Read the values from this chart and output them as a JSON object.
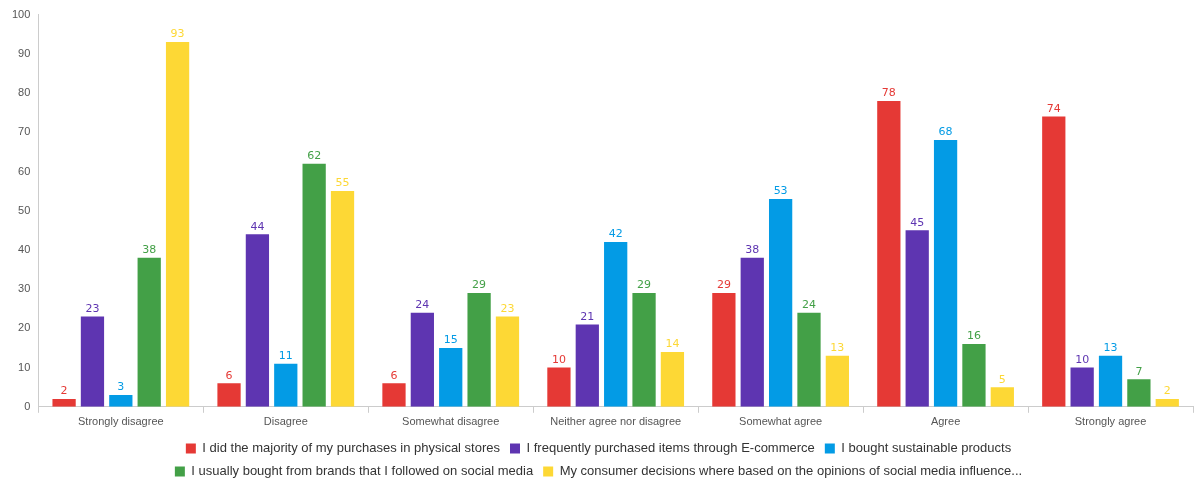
{
  "chart_data": {
    "type": "bar",
    "categories": [
      "Strongly disagree",
      "Disagree",
      "Somewhat disagree",
      "Neither agree nor disagree",
      "Somewhat agree",
      "Agree",
      "Strongly agree"
    ],
    "series": [
      {
        "name": "I did the majority of my purchases in physical stores",
        "color": "#e53935",
        "values": [
          2,
          6,
          6,
          10,
          29,
          78,
          74
        ]
      },
      {
        "name": "I frequently purchased items through E-commerce",
        "color": "#5e35b1",
        "values": [
          23,
          44,
          24,
          21,
          38,
          45,
          10
        ]
      },
      {
        "name": "I bought sustainable products",
        "color": "#039be5",
        "values": [
          3,
          11,
          15,
          42,
          53,
          68,
          13
        ]
      },
      {
        "name": "I usually bought from brands that I followed on social media",
        "color": "#43a047",
        "values": [
          38,
          62,
          29,
          29,
          24,
          16,
          7
        ]
      },
      {
        "name": "My consumer decisions where based on the opinions of social media influence...",
        "color": "#fdd835",
        "values": [
          93,
          55,
          23,
          14,
          13,
          5,
          2
        ]
      }
    ],
    "ylim": [
      0,
      100
    ],
    "yticks": [
      0,
      10,
      20,
      30,
      40,
      50,
      60,
      70,
      80,
      90,
      100
    ],
    "grid": false,
    "legend": "bottom",
    "data_labels": true
  }
}
